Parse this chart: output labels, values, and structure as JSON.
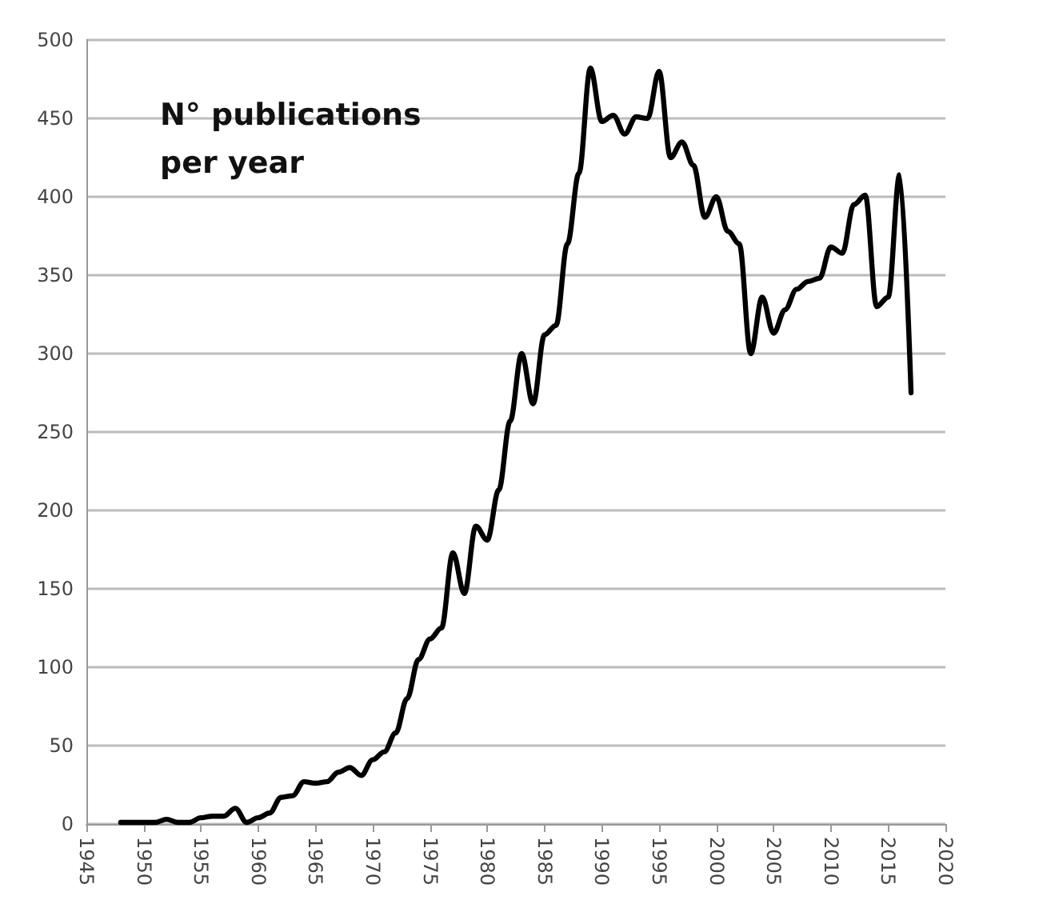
{
  "chart_data": {
    "type": "line",
    "title": "N° publications per year",
    "x": [
      1948,
      1949,
      1950,
      1951,
      1952,
      1953,
      1954,
      1955,
      1956,
      1957,
      1958,
      1959,
      1960,
      1961,
      1962,
      1963,
      1964,
      1965,
      1966,
      1967,
      1968,
      1969,
      1970,
      1971,
      1972,
      1973,
      1974,
      1975,
      1976,
      1977,
      1978,
      1979,
      1980,
      1981,
      1982,
      1983,
      1984,
      1985,
      1986,
      1987,
      1988,
      1989,
      1990,
      1991,
      1992,
      1993,
      1994,
      1995,
      1996,
      1997,
      1998,
      1999,
      2000,
      2001,
      2002,
      2003,
      2004,
      2005,
      2006,
      2007,
      2008,
      2009,
      2010,
      2011,
      2012,
      2013,
      2014,
      2015,
      2016,
      2017
    ],
    "series": [
      {
        "color": "#000000",
        "values": [
          1,
          1,
          1,
          1,
          3,
          1,
          1,
          4,
          5,
          5,
          10,
          1,
          4,
          7,
          17,
          18,
          27,
          26,
          27,
          33,
          36,
          31,
          41,
          46,
          58,
          80,
          105,
          118,
          125,
          173,
          147,
          190,
          181,
          213,
          257,
          300,
          268,
          312,
          318,
          370,
          415,
          482,
          448,
          452,
          440,
          451,
          450,
          480,
          425,
          435,
          420,
          387,
          400,
          378,
          370,
          300,
          336,
          313,
          328,
          341,
          346,
          348,
          368,
          364,
          395,
          401,
          330,
          336,
          414,
          275
        ]
      }
    ],
    "xlim": [
      1945,
      2020
    ],
    "xticks": [
      1945,
      1950,
      1955,
      1960,
      1965,
      1970,
      1975,
      1980,
      1985,
      1990,
      1995,
      2000,
      2005,
      2010,
      2015,
      2020
    ],
    "ylim": [
      0,
      500
    ],
    "yticks": [
      0,
      50,
      100,
      150,
      200,
      250,
      300,
      350,
      400,
      450,
      500
    ],
    "grid": "y",
    "marker": "none",
    "line_style": "solid"
  }
}
